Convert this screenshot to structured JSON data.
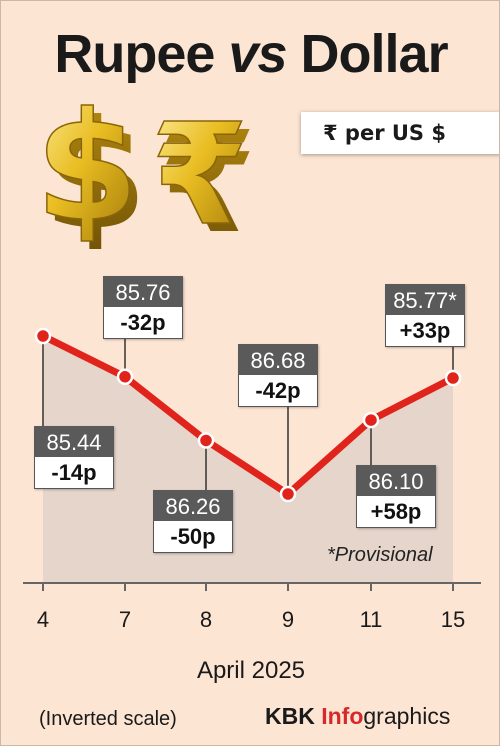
{
  "title": {
    "part1": "Rupee",
    "vs": "vs",
    "part2": "Dollar"
  },
  "unit_label": "₹ per US $",
  "chart_data": {
    "type": "line",
    "x": [
      "4",
      "7",
      "8",
      "9",
      "11",
      "15"
    ],
    "values": [
      85.44,
      85.76,
      86.26,
      86.68,
      86.1,
      85.77
    ],
    "value_labels": [
      "85.44",
      "85.76",
      "86.26",
      "86.68",
      "86.10",
      "85.77*"
    ],
    "changes": [
      "-14p",
      "-32p",
      "-50p",
      "-42p",
      "+58p",
      "+33p"
    ],
    "xlabel": "April 2025",
    "y_inverted": true,
    "ylim": [
      86.85,
      85.2
    ],
    "line_color": "#e0231b",
    "grid": false
  },
  "note": "*Provisional",
  "scale_note": "(Inverted scale)",
  "credit": {
    "kbk": "KBK",
    "info": "Info",
    "graphics": "graphics"
  },
  "colors": {
    "background": "#fde5d4",
    "line": "#e0231b",
    "value_box": "#5a5a5a",
    "coin": "#e6b81e"
  },
  "icons": [
    "dollar-coin-icon",
    "rupee-coin-icon"
  ]
}
